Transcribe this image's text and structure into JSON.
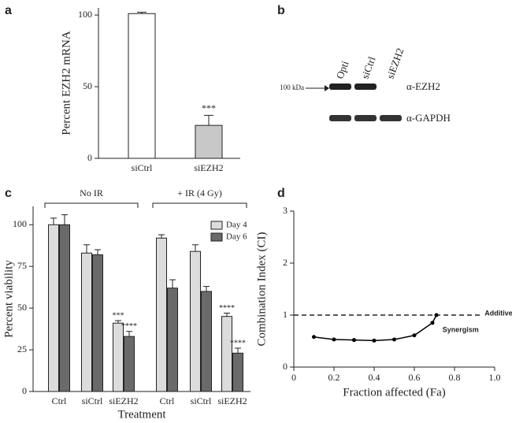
{
  "chart_data": [
    {
      "type": "bar",
      "panel": "a",
      "ylabel": "Percent EZH2 mRNA",
      "categories": [
        "siCtrl",
        "siEZH2"
      ],
      "values": [
        101,
        23
      ],
      "errors": [
        1,
        7
      ],
      "colors": [
        "#ffffff",
        "#c8c8c8"
      ],
      "significance": [
        null,
        "***"
      ],
      "ylim": [
        0,
        105
      ],
      "yticks": [
        0,
        50,
        100
      ]
    },
    {
      "type": "blot",
      "panel": "b",
      "lanes": [
        "Opti",
        "siCtrl",
        "siEZH2"
      ],
      "marker": "100 kDa",
      "antibodies": [
        "α-EZH2",
        "α-GAPDH"
      ]
    },
    {
      "type": "groupedbar",
      "panel": "c",
      "ylabel": "Percent viability",
      "xlabel": "Treatment",
      "groups": [
        "No IR",
        "+ IR (4 Gy)"
      ],
      "categories": [
        "Ctrl",
        "siCtrl",
        "siEZH2",
        "Ctrl",
        "siCtrl",
        "siEZH2"
      ],
      "series": [
        {
          "name": "Day 4",
          "color": "#dcdcdc",
          "values": [
            100,
            83,
            41,
            92,
            84,
            45
          ],
          "errors": [
            4,
            5,
            1.5,
            2,
            4,
            2
          ],
          "significance": [
            null,
            null,
            "***",
            null,
            null,
            "****"
          ]
        },
        {
          "name": "Day 6",
          "color": "#6a6a6a",
          "values": [
            100,
            82,
            33,
            62,
            60,
            23
          ],
          "errors": [
            6,
            3,
            3,
            5,
            3,
            3
          ],
          "significance": [
            null,
            null,
            "****",
            null,
            null,
            "****"
          ]
        }
      ],
      "ylim": [
        0,
        111
      ],
      "yticks": [
        0,
        25,
        50,
        75,
        100
      ],
      "legend": "upper right"
    },
    {
      "type": "line",
      "panel": "d",
      "xlabel": "Fraction  affected (Fa)",
      "ylabel": "Combination Index (CI)",
      "x": [
        0.1,
        0.2,
        0.3,
        0.4,
        0.5,
        0.6,
        0.69,
        0.71
      ],
      "values": [
        0.58,
        0.53,
        0.52,
        0.51,
        0.53,
        0.61,
        0.85,
        1.0
      ],
      "color": "#000000",
      "hline": 1,
      "annotations": [
        "Additive",
        "Synergism"
      ],
      "xlim": [
        0,
        1
      ],
      "xticks": [
        0,
        0.2,
        0.4,
        0.6,
        0.8,
        {
          "value": 1,
          "label": "1.0"
        }
      ],
      "ylim": [
        0,
        3
      ],
      "yticks": [
        0,
        1,
        2,
        3
      ]
    }
  ]
}
